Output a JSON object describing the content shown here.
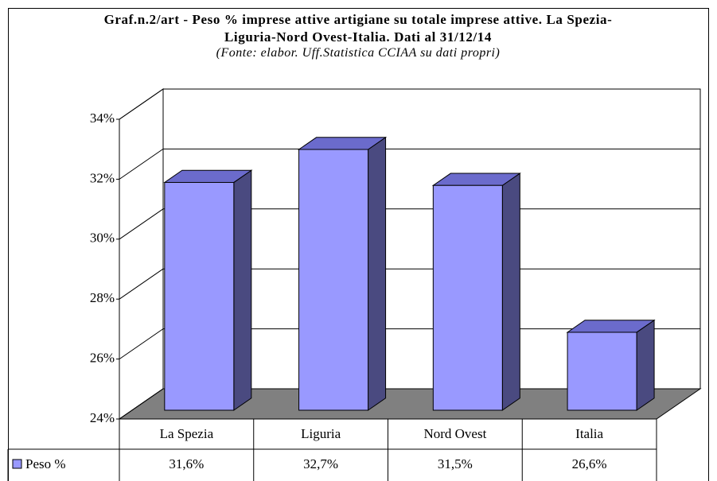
{
  "chart_data": {
    "type": "bar3d",
    "title": "Graf.n.2/art - Peso % imprese attive artigiane su totale imprese attive.  La Spezia-Liguria-Nord Ovest-Italia. Dati al 31/12/14",
    "subtitle": "(Fonte: elabor. Uff.Statistica CCIAA su dati propri)",
    "categories": [
      "La Spezia",
      "Liguria",
      "Nord Ovest",
      "Italia"
    ],
    "series": [
      {
        "name": "Peso %",
        "color": "#9999ff",
        "values": [
          31.6,
          32.7,
          31.5,
          26.6
        ],
        "value_labels": [
          "31,6%",
          "32,7%",
          "31,5%",
          "26,6%"
        ]
      }
    ],
    "ylim": [
      24,
      34
    ],
    "yticks": [
      {
        "value": 24,
        "label": "24%"
      },
      {
        "value": 26,
        "label": "26%"
      },
      {
        "value": 28,
        "label": "28%"
      },
      {
        "value": 30,
        "label": "30%"
      },
      {
        "value": 32,
        "label": "32%"
      },
      {
        "value": 34,
        "label": "34%"
      }
    ],
    "grid": true
  }
}
